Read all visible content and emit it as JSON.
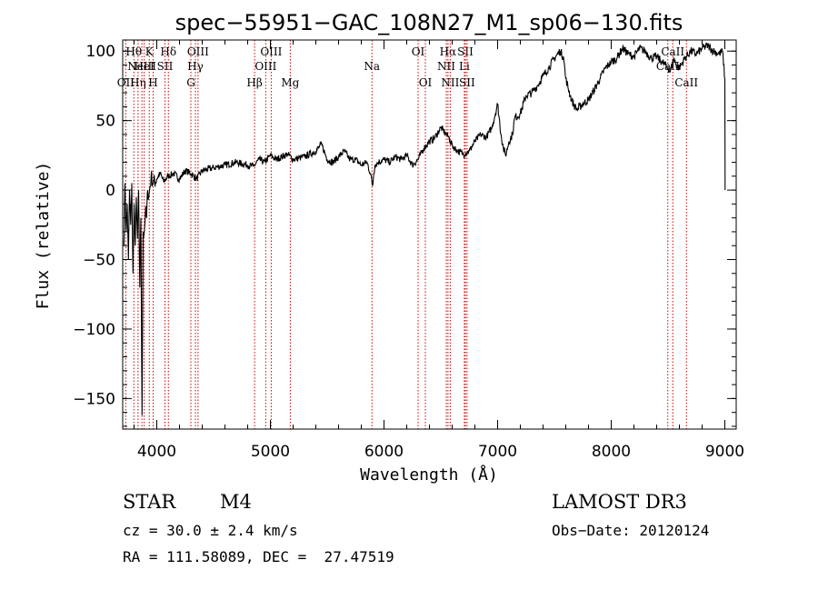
{
  "chart_data": {
    "type": "line",
    "title": "spec−55951−GAC_108N27_M1_sp06−130.fits",
    "xlabel": "Wavelength (Å)",
    "ylabel": "Flux (relative)",
    "xlim": [
      3700,
      9100
    ],
    "ylim": [
      -172,
      108
    ],
    "x_ticks": [
      4000,
      5000,
      6000,
      7000,
      8000,
      9000
    ],
    "y_ticks": [
      -150,
      -100,
      -50,
      0,
      50,
      100
    ],
    "y_tick_labels": [
      "−150",
      "−100",
      "−50",
      "0",
      "50",
      "100"
    ],
    "grid": false,
    "line_color": "#000000",
    "marker_color": "#cc0000",
    "series": [
      {
        "name": "flux",
        "x": [
          3710,
          3720,
          3730,
          3740,
          3750,
          3760,
          3770,
          3780,
          3790,
          3800,
          3810,
          3820,
          3830,
          3840,
          3850,
          3860,
          3870,
          3880,
          3890,
          3900,
          3910,
          3920,
          3930,
          3950,
          3970,
          4000,
          4030,
          4060,
          4100,
          4150,
          4200,
          4250,
          4300,
          4350,
          4400,
          4500,
          4600,
          4700,
          4800,
          4850,
          4900,
          4950,
          5000,
          5050,
          5100,
          5150,
          5200,
          5300,
          5400,
          5450,
          5500,
          5550,
          5600,
          5650,
          5700,
          5750,
          5800,
          5850,
          5880,
          5900,
          5910,
          5920,
          5950,
          6000,
          6050,
          6100,
          6150,
          6200,
          6250,
          6300,
          6350,
          6400,
          6450,
          6500,
          6550,
          6570,
          6600,
          6650,
          6700,
          6750,
          6800,
          6850,
          6900,
          6950,
          7000,
          7030,
          7050,
          7070,
          7100,
          7130,
          7150,
          7200,
          7250,
          7300,
          7350,
          7400,
          7450,
          7500,
          7550,
          7580,
          7600,
          7650,
          7680,
          7700,
          7750,
          7800,
          7850,
          7900,
          7950,
          8000,
          8050,
          8100,
          8150,
          8200,
          8250,
          8300,
          8350,
          8400,
          8450,
          8500,
          8520,
          8550,
          8570,
          8600,
          8650,
          8700,
          8750,
          8800,
          8850,
          8900,
          8950,
          8980,
          9000,
          9002
        ],
        "y": [
          -40,
          5,
          -30,
          -10,
          -50,
          0,
          -25,
          5,
          -60,
          -10,
          -40,
          -5,
          -35,
          0,
          -70,
          -20,
          -162,
          -30,
          -30,
          -15,
          -20,
          0,
          -5,
          10,
          5,
          8,
          12,
          6,
          10,
          12,
          8,
          14,
          12,
          8,
          14,
          16,
          18,
          20,
          18,
          17,
          22,
          20,
          25,
          22,
          24,
          26,
          22,
          24,
          28,
          33,
          22,
          20,
          24,
          28,
          22,
          22,
          18,
          20,
          12,
          3,
          12,
          18,
          20,
          22,
          20,
          24,
          22,
          25,
          18,
          22,
          30,
          35,
          38,
          45,
          40,
          38,
          32,
          28,
          26,
          28,
          35,
          40,
          38,
          45,
          62,
          40,
          30,
          25,
          35,
          40,
          52,
          55,
          68,
          70,
          75,
          82,
          88,
          95,
          100,
          96,
          80,
          65,
          60,
          58,
          62,
          65,
          72,
          80,
          88,
          92,
          95,
          102,
          98,
          96,
          102,
          100,
          95,
          96,
          92,
          88,
          85,
          95,
          90,
          88,
          95,
          100,
          98,
          102,
          104,
          100,
          98,
          100,
          80,
          0
        ]
      }
    ],
    "spectral_lines": [
      {
        "wavelength": 3727,
        "label": "OII",
        "row": 3
      },
      {
        "wavelength": 3798,
        "label": "Hθ",
        "row": 1
      },
      {
        "wavelength": 3835,
        "label": "Hη",
        "row": 3
      },
      {
        "wavelength": 3869,
        "label": "NeIII",
        "row": 2
      },
      {
        "wavelength": 3889,
        "label": "HeI",
        "row": 2
      },
      {
        "wavelength": 3934,
        "label": "K",
        "row": 1
      },
      {
        "wavelength": 3968,
        "label": "H",
        "row": 3
      },
      {
        "wavelength": 4072,
        "label": "SII",
        "row": 2
      },
      {
        "wavelength": 4102,
        "label": "Hδ",
        "row": 1
      },
      {
        "wavelength": 4300,
        "label": "G",
        "row": 3
      },
      {
        "wavelength": 4340,
        "label": "Hγ",
        "row": 2
      },
      {
        "wavelength": 4363,
        "label": "OIII",
        "row": 1
      },
      {
        "wavelength": 4861,
        "label": "Hβ",
        "row": 3
      },
      {
        "wavelength": 4959,
        "label": "OIII",
        "row": 2
      },
      {
        "wavelength": 5007,
        "label": "OIII",
        "row": 1
      },
      {
        "wavelength": 5175,
        "label": "Mg",
        "row": 3
      },
      {
        "wavelength": 5894,
        "label": "Na",
        "row": 2
      },
      {
        "wavelength": 6300,
        "label": "OI",
        "row": 1
      },
      {
        "wavelength": 6364,
        "label": "OI",
        "row": 3
      },
      {
        "wavelength": 6548,
        "label": "NII",
        "row": 2
      },
      {
        "wavelength": 6563,
        "label": "Hα",
        "row": 1
      },
      {
        "wavelength": 6583,
        "label": "NII",
        "row": 3
      },
      {
        "wavelength": 6707,
        "label": "Li",
        "row": 2
      },
      {
        "wavelength": 6716,
        "label": "SII",
        "row": 1
      },
      {
        "wavelength": 6731,
        "label": "SII",
        "row": 3
      },
      {
        "wavelength": 8498,
        "label": "CaII",
        "row": 2
      },
      {
        "wavelength": 8542,
        "label": "CaII",
        "row": 1
      },
      {
        "wavelength": 8662,
        "label": "CaII",
        "row": 3
      }
    ]
  },
  "info": {
    "object_class": "STAR",
    "subclass": "M4",
    "survey": "LAMOST DR3",
    "cz": "cz = 30.0 ± 2.4 km/s",
    "obs_date": "Obs−Date: 20120124",
    "coords": "RA = 111.58089, DEC =  27.47519"
  }
}
